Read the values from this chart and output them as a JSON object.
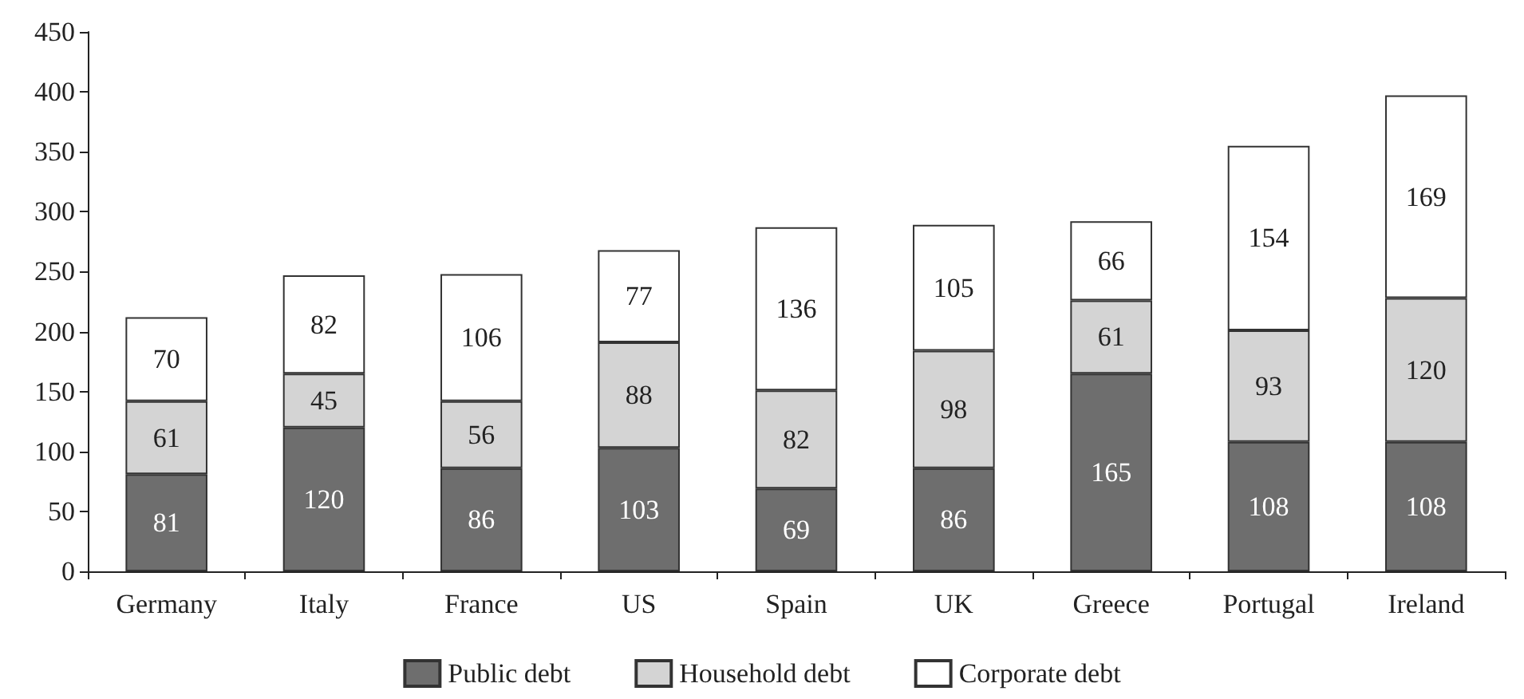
{
  "chart_data": {
    "type": "bar",
    "stacked": true,
    "data_labels": true,
    "legend": "bottom",
    "grid": false,
    "categories": [
      "Germany",
      "Italy",
      "France",
      "US",
      "Spain",
      "UK",
      "Greece",
      "Portugal",
      "Ireland"
    ],
    "series": [
      {
        "name": "Public debt",
        "color": "#6e6e6e",
        "values": [
          81,
          120,
          86,
          103,
          69,
          86,
          165,
          108,
          108
        ]
      },
      {
        "name": "Household debt",
        "color": "#d4d4d4",
        "values": [
          61,
          45,
          56,
          88,
          82,
          98,
          61,
          93,
          120
        ]
      },
      {
        "name": "Corporate debt",
        "color": "#ffffff",
        "values": [
          70,
          82,
          106,
          77,
          136,
          105,
          66,
          154,
          169
        ]
      }
    ],
    "ylim": [
      0,
      450
    ],
    "yticks": [
      0,
      50,
      100,
      150,
      200,
      250,
      300,
      350,
      400,
      450
    ]
  }
}
